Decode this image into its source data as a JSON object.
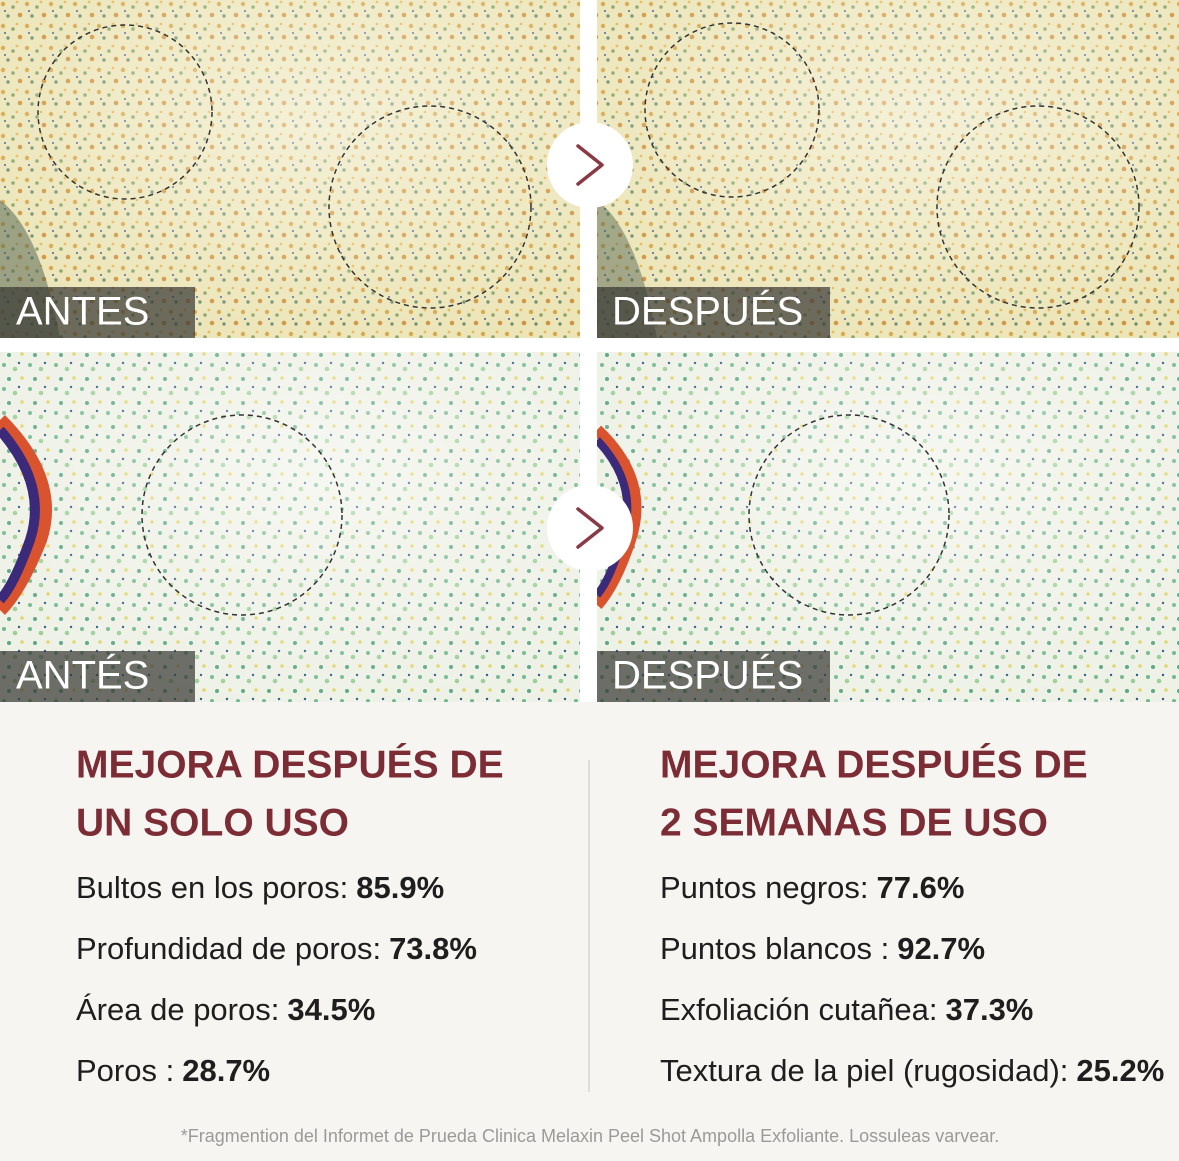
{
  "panels": [
    {
      "label": "ANTES"
    },
    {
      "label": "DESPUÉS"
    },
    {
      "label": "ANTÉS"
    },
    {
      "label": "DESPUÉS"
    }
  ],
  "columns": [
    {
      "title": [
        "MEJORA DESPUÉS DE",
        "UN SOLO USO"
      ],
      "items": [
        {
          "label": "Bultos en los poros:",
          "value": "85.9%"
        },
        {
          "label": "Profundidad de poros:",
          "value": "73.8%"
        },
        {
          "label": "Área de poros:",
          "value": "34.5%"
        },
        {
          "label": "Poros :",
          "value": "28.7%"
        }
      ]
    },
    {
      "title": [
        "MEJORA DESPUÉS DE",
        "2 SEMANAS DE USO"
      ],
      "items": [
        {
          "label": "Puntos negros:",
          "value": "77.6%"
        },
        {
          "label": "Puntos blancos :",
          "value": "92.7%"
        },
        {
          "label": "Exfoliación cutañea:",
          "value": "37.3%"
        },
        {
          "label": "Textura de la piel (rugosidad):",
          "value": "25.2%"
        }
      ]
    }
  ],
  "footnote": "*Fragmention del Informet de Prueda Clinica Melaxin Peel Shot Ampolla Exfoliante. Lossuleas varvear."
}
